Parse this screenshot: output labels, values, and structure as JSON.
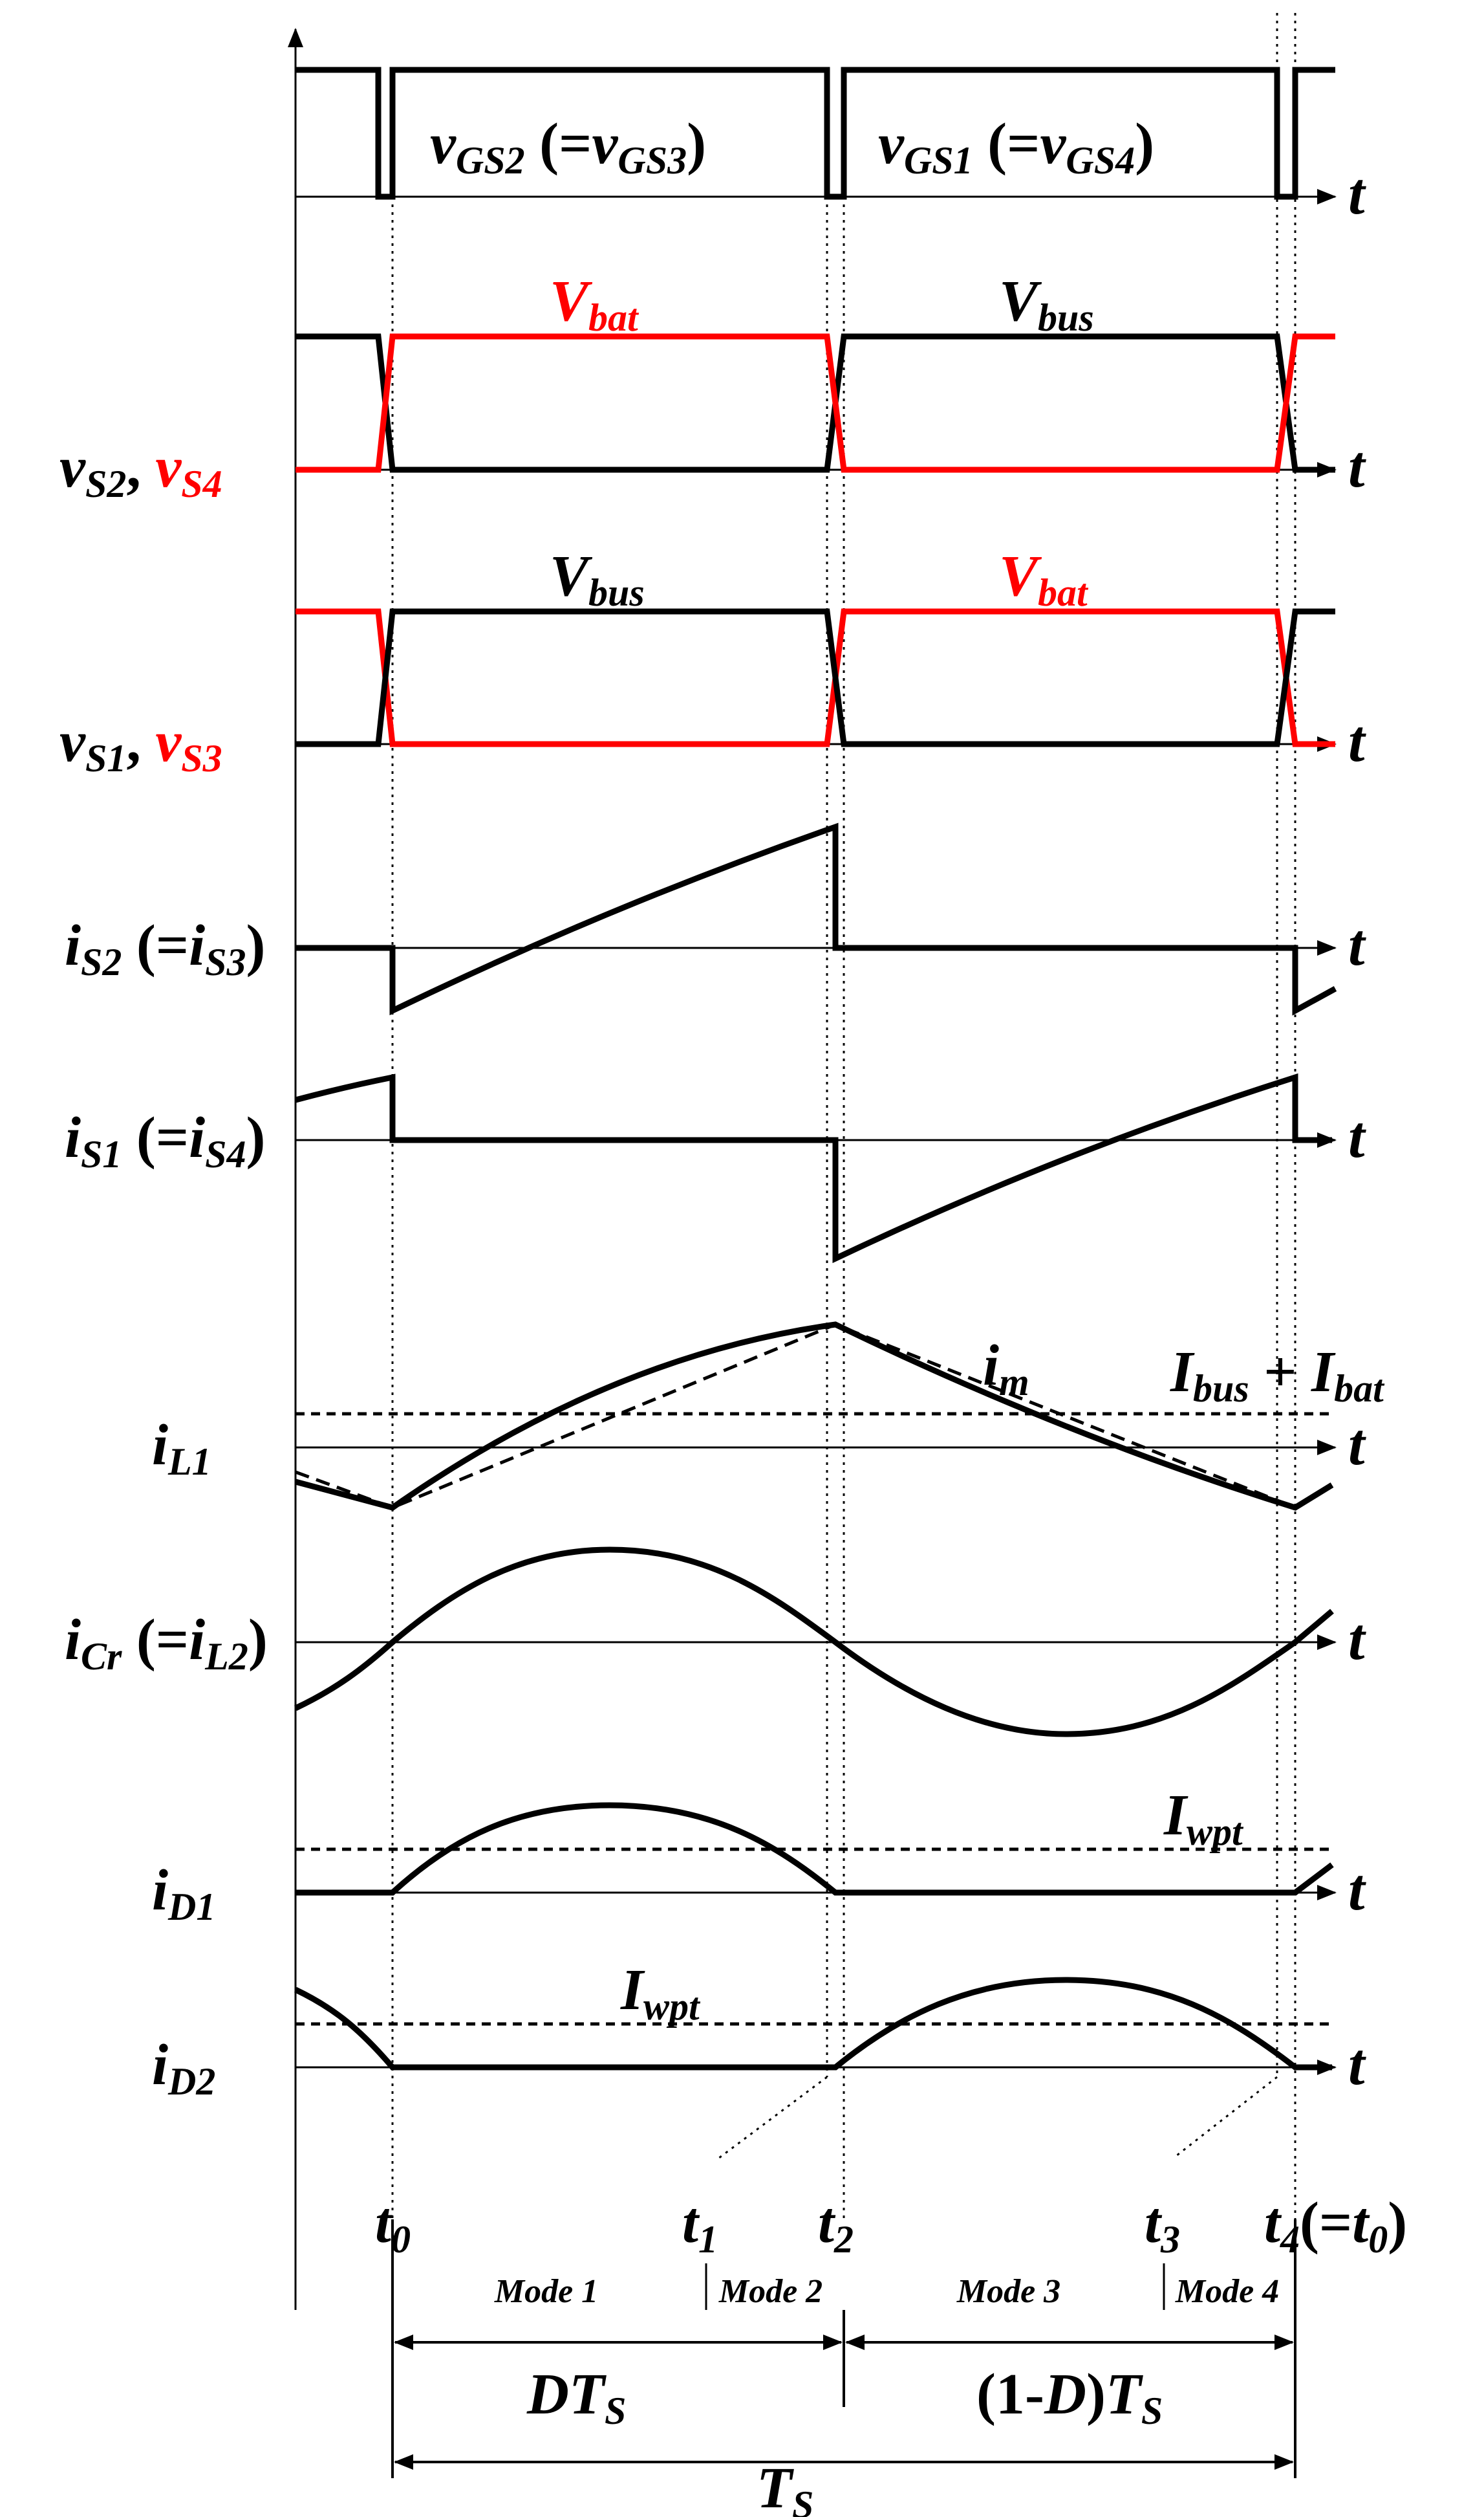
{
  "colors": {
    "ink": "#000000",
    "accent": "#ff0000",
    "background": "#ffffff"
  },
  "axis_symbol": "t",
  "rows": {
    "gate": {
      "label_a": "v",
      "label_a_sub": "GS2",
      "label_b": " (=",
      "label_c": "v",
      "label_c_sub": "GS3",
      "label_d": ")",
      "label2_a": "v",
      "label2_a_sub": "GS1",
      "label2_b": " (=",
      "label2_c": "v",
      "label2_c_sub": "GS4",
      "label2_d": ")"
    },
    "vs24": {
      "name_a": "v",
      "name_a_sub": "S2",
      "sep": ", ",
      "name_b": "v",
      "name_b_sub": "S4",
      "level_a": "V",
      "level_a_sub": "bat",
      "level_b": "V",
      "level_b_sub": "bus"
    },
    "vs13": {
      "name_a": "v",
      "name_a_sub": "S1",
      "sep": ", ",
      "name_b": "v",
      "name_b_sub": "S3",
      "level_a": "V",
      "level_a_sub": "bus",
      "level_b": "V",
      "level_b_sub": "bat"
    },
    "is2": {
      "name": "i",
      "name_sub": "S2",
      "eq_a": " (=",
      "eq_b": "i",
      "eq_b_sub": "S3",
      "eq_c": ")"
    },
    "is1": {
      "name": "i",
      "name_sub": "S1",
      "eq_a": " (=",
      "eq_b": "i",
      "eq_b_sub": "S4",
      "eq_c": ")"
    },
    "il1": {
      "name": "i",
      "name_sub": "L1",
      "im": "i",
      "im_sub": "m",
      "ref_a": "I",
      "ref_a_sub": "bus",
      "ref_plus": " + ",
      "ref_b": "I",
      "ref_b_sub": "bat"
    },
    "icr": {
      "name": "i",
      "name_sub": "Cr",
      "eq_a": " (=",
      "eq_b": "i",
      "eq_b_sub": "L2",
      "eq_c": ")"
    },
    "id1": {
      "name": "i",
      "name_sub": "D1",
      "ref": "I",
      "ref_sub": "wpt"
    },
    "id2": {
      "name": "i",
      "name_sub": "D2",
      "ref": "I",
      "ref_sub": "wpt"
    }
  },
  "time_marks": [
    {
      "t": "t",
      "sub": "0",
      "extra": ""
    },
    {
      "t": "t",
      "sub": "1",
      "extra": ""
    },
    {
      "t": "t",
      "sub": "2",
      "extra": ""
    },
    {
      "t": "t",
      "sub": "3",
      "extra": ""
    },
    {
      "t": "t",
      "sub": "4",
      "extra": "(=",
      "t2": "t",
      "sub2": "0",
      "close": ")"
    }
  ],
  "modes": [
    "Mode 1",
    "Mode 2",
    "Mode 3",
    "Mode 4"
  ],
  "intervals": {
    "dts_a": "DT",
    "dts_sub": "S",
    "one_minus_d_a": "(1-",
    "one_minus_d_b": "D",
    "one_minus_d_c": ")",
    "one_minus_d_t": "T",
    "one_minus_d_sub": "S",
    "ts": "T",
    "ts_sub": "S"
  }
}
